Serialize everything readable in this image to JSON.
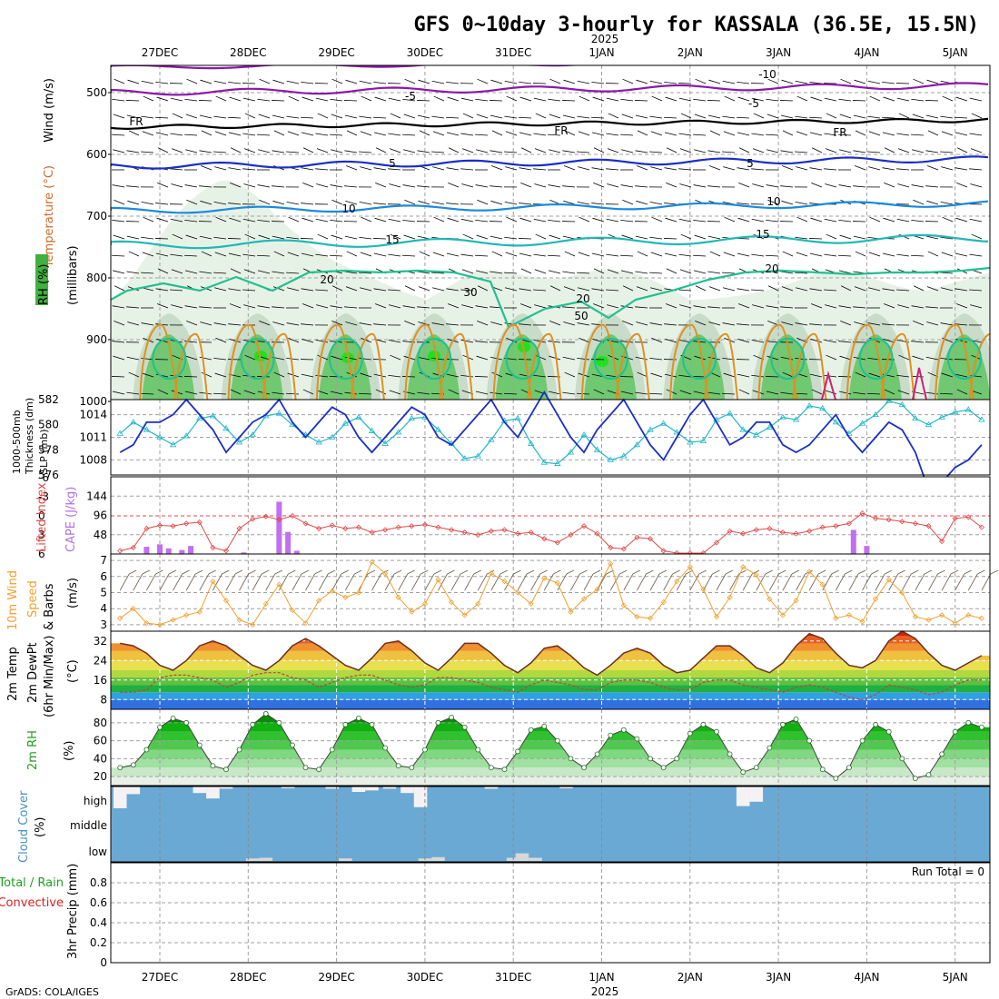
{
  "title": "GFS 0~10day 3-hourly for KASSALA (36.5E, 15.5N)",
  "year_label": "2025",
  "credit": "GrADS: COLA/IGES",
  "run_total": "Run Total = 0",
  "colors": {
    "sea": "#6aa9d4",
    "grid": "#a0a0a0",
    "slp": "#1a2fc8",
    "thick": "#20b8c8",
    "li": "#e04848",
    "cape": "#c070f0",
    "wind": "#f0a030",
    "rh": "#20c020",
    "temp_hot": "#e83010",
    "temp_cold": "#3070e0"
  },
  "date_labels": [
    "27DEC",
    "28DEC",
    "29DEC",
    "30DEC",
    "31DEC",
    "1JAN",
    "2JAN",
    "3JAN",
    "4JAN",
    "5JAN"
  ],
  "panels": {
    "upper": {
      "ylabel_wind": "Wind (m/s)",
      "ylabel_temp": "Temperature (°C)",
      "ylabel_rh": "RH (%)",
      "ylabel_unit": "(millibars)",
      "yticks": [
        "500",
        "600",
        "700",
        "800",
        "900",
        "1000"
      ],
      "contour_labels": [
        "-10",
        "-5",
        "-5",
        "FR",
        "FR",
        "FR",
        "5",
        "5",
        "10",
        "10",
        "15",
        "15",
        "20",
        "20",
        "20",
        "30",
        "50"
      ]
    },
    "slp": {
      "ylabel_thick": "1000-500mb",
      "ylabel_thick2": "Thickness (dm)",
      "ylabel_slp": "SLP (mb)",
      "left_ticks": [
        "582",
        "580",
        "578",
        "576"
      ],
      "right_ticks": [
        "1014",
        "1011",
        "1008"
      ]
    },
    "cape": {
      "ylabel_li": "Lifted Index",
      "ylabel_cape": "CAPE (J/kg)",
      "left_ticks": [
        "-6",
        "-3",
        "0",
        "3",
        "6"
      ],
      "right_ticks": [
        "144",
        "96",
        "48"
      ]
    },
    "wind10": {
      "ylabel1": "10m Wind",
      "ylabel2": "Speed",
      "ylabel3": "& Barbs",
      "ylabel4": "(m/s)",
      "yticks": [
        "7",
        "6",
        "5",
        "4",
        "3"
      ]
    },
    "temp2m": {
      "ylabel1": "2m Temp",
      "ylabel2": "2m DewPt",
      "ylabel3": "(6hr Min/Max)",
      "ylabel4": "(°C)",
      "yticks": [
        "32",
        "24",
        "16",
        "8"
      ]
    },
    "rh2m": {
      "ylabel1": "2m RH",
      "ylabel2": "(%)",
      "yticks": [
        "80",
        "60",
        "40",
        "20"
      ]
    },
    "cloud": {
      "ylabel1": "Cloud Cover",
      "ylabel2": "(%)",
      "levels": [
        "high",
        "middle",
        "low"
      ]
    },
    "precip": {
      "ylabel1": "Total / Rain",
      "ylabel2": "Convective",
      "ylabel3": "3hr Precip (mm)",
      "yticks": [
        "0.8",
        "0.6",
        "0.4",
        "0.2",
        "0"
      ]
    }
  },
  "chart_data": [
    {
      "type": "line",
      "name": "slp_thickness",
      "xlabel": "",
      "x_unit": "day index from 27DEC (0..10)",
      "x": [
        -0.45,
        -0.3,
        -0.15,
        0,
        0.15,
        0.3,
        0.45,
        0.6,
        0.75,
        0.9,
        1.05,
        1.2,
        1.35,
        1.5,
        1.65,
        1.8,
        1.95,
        2.1,
        2.25,
        2.4,
        2.55,
        2.7,
        2.85,
        3.0,
        3.15,
        3.3,
        3.45,
        3.6,
        3.75,
        3.9,
        4.05,
        4.2,
        4.35,
        4.5,
        4.65,
        4.8,
        4.95,
        5.1,
        5.25,
        5.4,
        5.55,
        5.7,
        5.85,
        6.0,
        6.15,
        6.3,
        6.45,
        6.6,
        6.75,
        6.9,
        7.05,
        7.2,
        7.35,
        7.5,
        7.65,
        7.8,
        7.95,
        8.1,
        8.25,
        8.4,
        8.55,
        8.7,
        8.85,
        9.0,
        9.15,
        9.3
      ],
      "series": [
        {
          "name": "SLP (mb)",
          "values": [
            1009,
            1010,
            1013,
            1013,
            1014,
            1016,
            1014,
            1012,
            1009,
            1011,
            1013,
            1014,
            1016,
            1013,
            1011,
            1013,
            1015,
            1014,
            1011,
            1009,
            1011,
            1013,
            1015,
            1014,
            1011,
            1010,
            1012,
            1014,
            1016,
            1013,
            1011,
            1014,
            1017,
            1014,
            1011,
            1009,
            1012,
            1014,
            1016,
            1013,
            1010,
            1008,
            1011,
            1014,
            1016,
            1013,
            1010,
            1011,
            1013,
            1013,
            1010,
            1009,
            1010,
            1012,
            1014,
            1011,
            1009,
            1011,
            1013,
            1012,
            1009,
            1004,
            1005,
            1007,
            1008,
            1010
          ]
        },
        {
          "name": "Thickness (dm)",
          "values": [
            579.3,
            580.2,
            579.6,
            579.0,
            578.4,
            579.1,
            580.5,
            580.7,
            579.7,
            578.6,
            579.2,
            580.7,
            580.9,
            580.0,
            579.2,
            578.6,
            579.0,
            580.1,
            580.6,
            579.5,
            578.5,
            579.4,
            580.5,
            580.6,
            579.6,
            578.5,
            577.3,
            577.5,
            578.8,
            580.3,
            580.5,
            578.5,
            577.0,
            576.9,
            577.8,
            579.2,
            578.0,
            577.2,
            577.5,
            578.4,
            579.6,
            580.1,
            579.4,
            578.6,
            578.7,
            580.4,
            580.9,
            579.6,
            579.2,
            579.8,
            580.6,
            580.4,
            581.5,
            581.3,
            580.2,
            579.3,
            580.1,
            580.8,
            581.9,
            581.6,
            580.5,
            580.0,
            580.6,
            581.0,
            581.2,
            580.4
          ]
        }
      ],
      "ylim_left": [
        576,
        582
      ],
      "ylim_right": [
        1006,
        1016
      ],
      "grid": true
    },
    {
      "type": "bar",
      "name": "cape_lifted_index",
      "x_unit": "day index from 27DEC",
      "cape_x": [
        -0.15,
        0,
        0.1,
        0.25,
        0.35,
        0.95,
        1.35,
        1.45,
        1.55,
        7.85,
        8.0
      ],
      "cape_values": [
        18,
        24,
        14,
        10,
        20,
        4,
        130,
        55,
        8,
        60,
        20
      ],
      "li_x": [
        -0.45,
        -0.3,
        -0.15,
        0,
        0.15,
        0.3,
        0.45,
        0.6,
        0.75,
        0.9,
        1.05,
        1.2,
        1.35,
        1.5,
        1.65,
        1.8,
        1.95,
        2.1,
        2.25,
        2.4,
        2.55,
        2.7,
        2.85,
        3.0,
        3.15,
        3.3,
        3.45,
        3.6,
        3.75,
        3.9,
        4.05,
        4.2,
        4.35,
        4.5,
        4.65,
        4.8,
        4.95,
        5.1,
        5.25,
        5.4,
        5.55,
        5.7,
        5.85,
        6.0,
        6.15,
        6.3,
        6.45,
        6.6,
        6.75,
        6.9,
        7.05,
        7.2,
        7.35,
        7.5,
        7.65,
        7.8,
        7.95,
        8.1,
        8.25,
        8.4,
        8.55,
        8.7,
        8.85,
        9.0,
        9.15,
        9.3
      ],
      "li_values": [
        5.5,
        5.0,
        2.0,
        1.5,
        1.6,
        1.2,
        1.0,
        5.0,
        5.5,
        2.0,
        0.5,
        0.1,
        0.6,
        0.0,
        1.2,
        2.0,
        1.5,
        2.0,
        1.8,
        2.6,
        2.2,
        1.8,
        1.6,
        1.4,
        1.8,
        2.2,
        2.6,
        3.0,
        2.4,
        2.2,
        2.8,
        2.6,
        3.6,
        4.2,
        3.0,
        1.6,
        2.8,
        5.0,
        5.2,
        3.4,
        3.6,
        5.5,
        6.0,
        7.0,
        6.4,
        4.2,
        2.4,
        2.8,
        2.2,
        2.0,
        2.6,
        2.8,
        2.4,
        1.8,
        1.6,
        1.2,
        -0.4,
        0.4,
        0.6,
        0.9,
        1.2,
        1.6,
        4.0,
        0.4,
        0.2,
        1.8
      ],
      "li_ylim": [
        6,
        -6
      ],
      "cape_ylim": [
        0,
        192
      ]
    },
    {
      "type": "line",
      "name": "wind_speed_10m",
      "ylabel": "(m/s)",
      "x": [
        -0.45,
        -0.3,
        -0.15,
        0,
        0.15,
        0.3,
        0.45,
        0.6,
        0.75,
        0.9,
        1.05,
        1.2,
        1.35,
        1.5,
        1.65,
        1.8,
        1.95,
        2.1,
        2.25,
        2.4,
        2.55,
        2.7,
        2.85,
        3.0,
        3.15,
        3.3,
        3.45,
        3.6,
        3.75,
        3.9,
        4.05,
        4.2,
        4.35,
        4.5,
        4.65,
        4.8,
        4.95,
        5.1,
        5.25,
        5.4,
        5.55,
        5.7,
        5.85,
        6.0,
        6.15,
        6.3,
        6.45,
        6.6,
        6.75,
        6.9,
        7.05,
        7.2,
        7.35,
        7.5,
        7.65,
        7.8,
        7.95,
        8.1,
        8.25,
        8.4,
        8.55,
        8.7,
        8.85,
        9.0,
        9.15,
        9.3
      ],
      "values": [
        3.4,
        4.0,
        3.1,
        3.0,
        3.3,
        3.6,
        3.8,
        5.7,
        4.5,
        3.3,
        3.0,
        4.3,
        5.5,
        3.9,
        3.1,
        4.5,
        5.1,
        4.7,
        5.0,
        6.9,
        6.2,
        4.7,
        3.8,
        4.3,
        5.8,
        4.4,
        3.6,
        4.3,
        6.2,
        5.7,
        5.0,
        4.3,
        5.9,
        5.6,
        3.8,
        4.6,
        5.2,
        6.8,
        4.2,
        3.5,
        3.4,
        4.4,
        5.7,
        6.6,
        5.2,
        3.5,
        4.7,
        6.6,
        6.1,
        4.6,
        3.6,
        4.5,
        6.3,
        5.5,
        3.4,
        3.6,
        3.2,
        4.6,
        5.8,
        5.0,
        3.5,
        3.3,
        3.6,
        3.1,
        3.6,
        3.4
      ],
      "ylim": [
        2.6,
        7.4
      ]
    },
    {
      "type": "area",
      "name": "temp_2m",
      "ylabel": "(°C)",
      "x": [
        -0.45,
        -0.3,
        -0.15,
        0,
        0.15,
        0.3,
        0.45,
        0.6,
        0.75,
        0.9,
        1.05,
        1.2,
        1.35,
        1.5,
        1.65,
        1.8,
        1.95,
        2.1,
        2.25,
        2.4,
        2.55,
        2.7,
        2.85,
        3.0,
        3.15,
        3.3,
        3.45,
        3.6,
        3.75,
        3.9,
        4.05,
        4.2,
        4.35,
        4.5,
        4.65,
        4.8,
        4.95,
        5.1,
        5.25,
        5.4,
        5.55,
        5.7,
        5.85,
        6.0,
        6.15,
        6.3,
        6.45,
        6.6,
        6.75,
        6.9,
        7.05,
        7.2,
        7.35,
        7.5,
        7.65,
        7.8,
        7.95,
        8.1,
        8.25,
        8.4,
        8.55,
        8.7,
        8.85,
        9.0,
        9.15,
        9.3
      ],
      "series": [
        {
          "name": "2m Temp",
          "values": [
            31,
            30,
            27,
            22,
            20,
            24,
            30,
            32,
            30,
            26,
            22,
            20,
            24,
            30,
            33,
            30,
            26,
            22,
            20,
            25,
            31,
            32,
            28,
            23,
            20,
            25,
            31,
            31,
            27,
            22,
            19,
            23,
            29,
            30,
            26,
            21,
            18,
            22,
            27,
            29,
            27,
            22,
            19,
            20,
            25,
            30,
            30,
            26,
            21,
            19,
            23,
            30,
            35,
            33,
            27,
            22,
            21,
            24,
            32,
            36,
            33,
            27,
            22,
            20,
            23,
            26
          ]
        },
        {
          "name": "2m DewPt",
          "values": [
            11,
            11,
            12,
            17,
            18,
            18,
            17,
            16,
            13,
            15,
            18,
            19,
            19,
            17,
            16,
            13,
            15,
            17,
            18,
            18,
            16,
            14,
            13,
            14,
            17,
            17,
            16,
            15,
            13,
            12,
            11,
            14,
            16,
            15,
            14,
            12,
            12,
            15,
            16,
            16,
            15,
            13,
            12,
            12,
            15,
            16,
            16,
            14,
            13,
            12,
            11,
            13,
            14,
            13,
            11,
            9,
            8,
            10,
            14,
            13,
            12,
            10,
            11,
            14,
            16,
            16
          ]
        }
      ],
      "ylim": [
        4,
        36
      ]
    },
    {
      "type": "area",
      "name": "rh_2m",
      "ylabel": "(%)",
      "x": [
        -0.45,
        -0.3,
        -0.15,
        0,
        0.15,
        0.3,
        0.45,
        0.6,
        0.75,
        0.9,
        1.05,
        1.2,
        1.35,
        1.5,
        1.65,
        1.8,
        1.95,
        2.1,
        2.25,
        2.4,
        2.55,
        2.7,
        2.85,
        3.0,
        3.15,
        3.3,
        3.45,
        3.6,
        3.75,
        3.9,
        4.05,
        4.2,
        4.35,
        4.5,
        4.65,
        4.8,
        4.95,
        5.1,
        5.25,
        5.4,
        5.55,
        5.7,
        5.85,
        6.0,
        6.15,
        6.3,
        6.45,
        6.6,
        6.75,
        6.9,
        7.05,
        7.2,
        7.35,
        7.5,
        7.65,
        7.8,
        7.95,
        8.1,
        8.25,
        8.4,
        8.55,
        8.7,
        8.85,
        9.0,
        9.15,
        9.3
      ],
      "values": [
        30,
        33,
        50,
        75,
        85,
        80,
        55,
        32,
        28,
        50,
        78,
        90,
        80,
        55,
        30,
        28,
        50,
        78,
        85,
        78,
        52,
        32,
        30,
        50,
        80,
        86,
        75,
        50,
        30,
        28,
        48,
        72,
        76,
        60,
        40,
        30,
        45,
        66,
        72,
        62,
        40,
        30,
        40,
        68,
        78,
        70,
        45,
        25,
        30,
        52,
        78,
        84,
        60,
        28,
        18,
        30,
        60,
        78,
        70,
        40,
        18,
        22,
        45,
        70,
        80,
        75
      ],
      "ylim": [
        10,
        95
      ]
    },
    {
      "type": "bar",
      "name": "cloud_cover",
      "levels": [
        "high",
        "middle",
        "low"
      ],
      "high": [
        {
          "x": -0.45,
          "value": 100
        },
        {
          "x": -0.3,
          "value": 35
        },
        {
          "x": 0.45,
          "value": 30
        },
        {
          "x": 0.6,
          "value": 55
        },
        {
          "x": 0.75,
          "value": 10
        },
        {
          "x": 1.45,
          "value": 8
        },
        {
          "x": 1.95,
          "value": 10
        },
        {
          "x": 2.25,
          "value": 25
        },
        {
          "x": 2.4,
          "value": 18
        },
        {
          "x": 2.6,
          "value": 10
        },
        {
          "x": 2.8,
          "value": 30
        },
        {
          "x": 2.95,
          "value": 95
        },
        {
          "x": 3.75,
          "value": 10
        },
        {
          "x": 4.6,
          "value": 8
        },
        {
          "x": 6.6,
          "value": 90
        },
        {
          "x": 6.75,
          "value": 70
        }
      ],
      "middle": [],
      "low": [
        {
          "x": 1.05,
          "value": 20
        },
        {
          "x": 1.2,
          "value": 25
        },
        {
          "x": 2.1,
          "value": 20
        },
        {
          "x": 3.0,
          "value": 20
        },
        {
          "x": 3.15,
          "value": 30
        },
        {
          "x": 4.0,
          "value": 25
        },
        {
          "x": 4.1,
          "value": 60
        },
        {
          "x": 4.25,
          "value": 25
        }
      ],
      "ylim": [
        0,
        100
      ]
    },
    {
      "type": "bar",
      "name": "precip_3hr",
      "ylabel": "3hr Precip (mm)",
      "values": [],
      "ylim": [
        0,
        1.0
      ]
    }
  ]
}
